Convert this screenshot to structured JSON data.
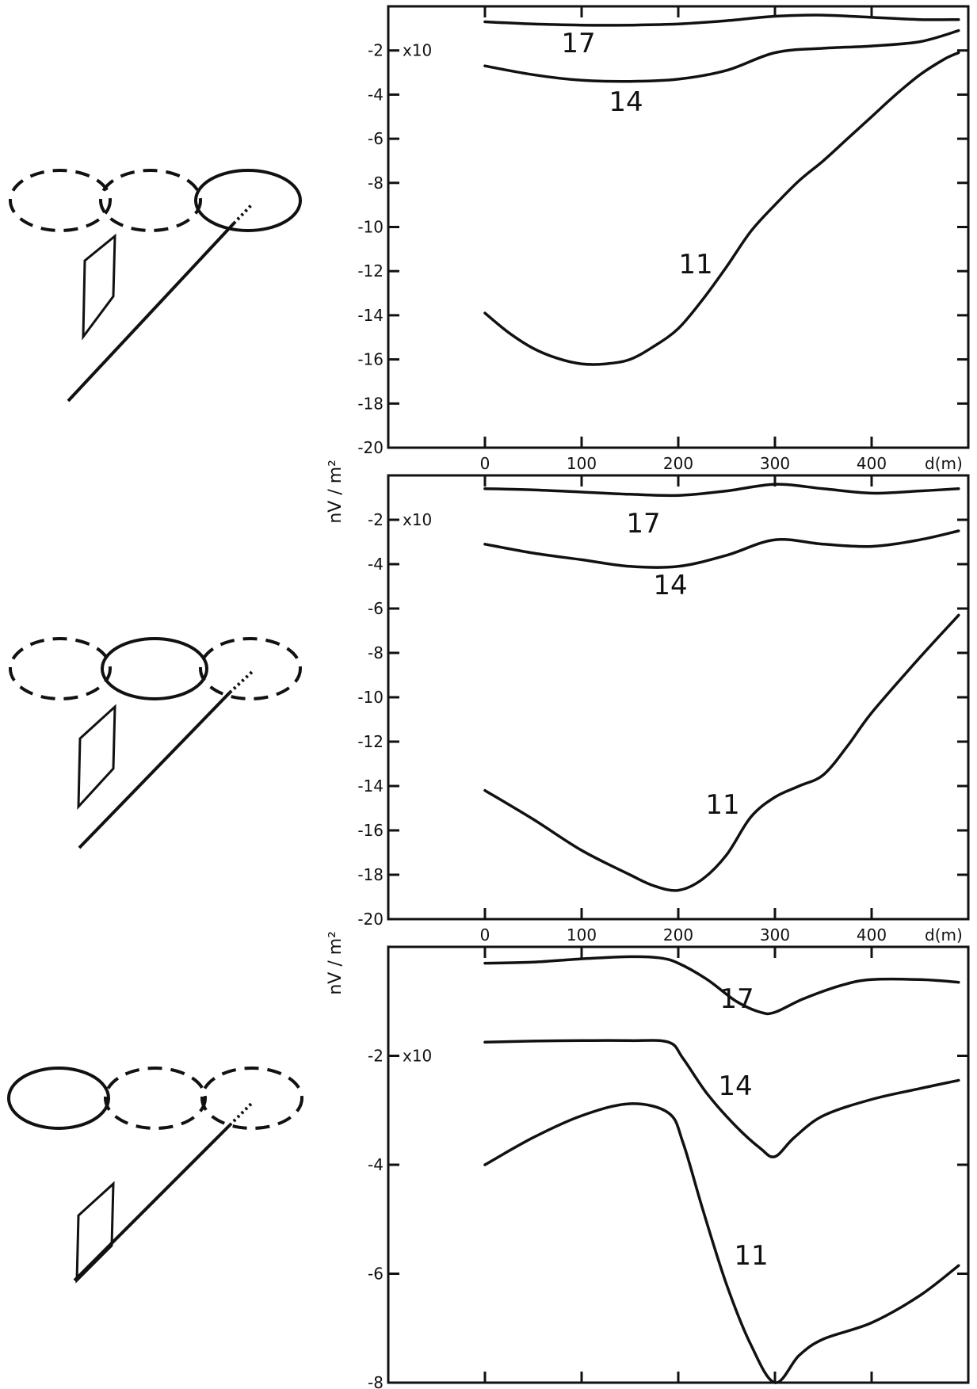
{
  "colors": {
    "ink": "#111111",
    "background": "#ffffff"
  },
  "chart_data": [
    {
      "type": "line",
      "panel": "top",
      "title": "",
      "xlabel": "d(m)",
      "ylabel": "nV / m²",
      "multiplier_label": "x10",
      "xlim": [
        -100,
        500
      ],
      "ylim": [
        -20,
        0
      ],
      "x_ticks": [
        0,
        100,
        200,
        300,
        400
      ],
      "x_tick_labels": [
        "0",
        "100",
        "200",
        "300",
        "400"
      ],
      "y_ticks": [
        -2,
        -4,
        -6,
        -8,
        -10,
        -12,
        -14,
        -16,
        -18,
        -20
      ],
      "y_tick_labels": [
        "-2",
        "-4",
        "-6",
        "-8",
        "-10",
        "-12",
        "-14",
        "-16",
        "-18",
        "-20"
      ],
      "series": [
        {
          "name": "17",
          "x": [
            0,
            50,
            100,
            150,
            200,
            250,
            300,
            350,
            400,
            450,
            490
          ],
          "y": [
            -0.7,
            -0.8,
            -0.85,
            -0.85,
            -0.8,
            -0.65,
            -0.45,
            -0.4,
            -0.5,
            -0.6,
            -0.6
          ]
        },
        {
          "name": "14",
          "x": [
            0,
            50,
            100,
            150,
            200,
            250,
            300,
            350,
            400,
            450,
            490
          ],
          "y": [
            -2.7,
            -3.1,
            -3.35,
            -3.4,
            -3.3,
            -2.9,
            -2.1,
            -1.9,
            -1.8,
            -1.6,
            -1.1
          ]
        },
        {
          "name": "11",
          "x": [
            0,
            25,
            50,
            75,
            100,
            125,
            150,
            175,
            200,
            225,
            250,
            275,
            300,
            325,
            350,
            375,
            400,
            425,
            450,
            475,
            490
          ],
          "y": [
            -13.9,
            -14.8,
            -15.5,
            -15.95,
            -16.2,
            -16.2,
            -16.0,
            -15.4,
            -14.6,
            -13.3,
            -11.8,
            -10.2,
            -9.0,
            -7.9,
            -7.0,
            -6.0,
            -5.0,
            -4.0,
            -3.1,
            -2.4,
            -2.1
          ]
        }
      ],
      "annotations": [
        "17",
        "14",
        "11"
      ]
    },
    {
      "type": "line",
      "panel": "middle",
      "title": "",
      "xlabel": "d(m)",
      "ylabel": "nV / m²",
      "multiplier_label": "x10",
      "xlim": [
        -100,
        500
      ],
      "ylim": [
        -20,
        0
      ],
      "x_ticks": [
        0,
        100,
        200,
        300,
        400
      ],
      "x_tick_labels": [
        "0",
        "100",
        "200",
        "300",
        "400"
      ],
      "y_ticks": [
        -2,
        -4,
        -6,
        -8,
        -10,
        -12,
        -14,
        -16,
        -18,
        -20
      ],
      "y_tick_labels": [
        "-2",
        "-4",
        "-6",
        "-8",
        "-10",
        "-12",
        "-14",
        "-16",
        "-18",
        "-20"
      ],
      "series": [
        {
          "name": "17",
          "x": [
            0,
            50,
            100,
            150,
            200,
            250,
            300,
            350,
            400,
            450,
            490
          ],
          "y": [
            -0.6,
            -0.65,
            -0.75,
            -0.85,
            -0.9,
            -0.7,
            -0.4,
            -0.6,
            -0.8,
            -0.7,
            -0.6
          ]
        },
        {
          "name": "14",
          "x": [
            0,
            50,
            100,
            150,
            200,
            250,
            300,
            350,
            400,
            450,
            490
          ],
          "y": [
            -3.1,
            -3.5,
            -3.8,
            -4.1,
            -4.1,
            -3.6,
            -2.9,
            -3.1,
            -3.2,
            -2.9,
            -2.5
          ]
        },
        {
          "name": "11",
          "x": [
            0,
            50,
            100,
            150,
            175,
            200,
            225,
            250,
            275,
            300,
            325,
            350,
            375,
            400,
            450,
            490
          ],
          "y": [
            -14.2,
            -15.5,
            -16.9,
            -18.0,
            -18.5,
            -18.7,
            -18.2,
            -17.1,
            -15.4,
            -14.5,
            -14.0,
            -13.5,
            -12.2,
            -10.7,
            -8.2,
            -6.3
          ]
        }
      ],
      "annotations": [
        "17",
        "14",
        "11"
      ]
    },
    {
      "type": "line",
      "panel": "bottom",
      "title": "",
      "xlabel": "",
      "ylabel": "nV / m²",
      "multiplier_label": "x10",
      "xlim": [
        -100,
        500
      ],
      "ylim": [
        -8,
        0
      ],
      "x_ticks": [
        0,
        100,
        200,
        300,
        400
      ],
      "x_tick_labels": [],
      "y_ticks": [
        -2,
        -4,
        -6,
        -8
      ],
      "y_tick_labels": [
        "-2",
        "-4",
        "-6",
        "-8"
      ],
      "series": [
        {
          "name": "17",
          "x": [
            0,
            50,
            100,
            150,
            180,
            200,
            230,
            260,
            285,
            300,
            330,
            370,
            400,
            450,
            490
          ],
          "y": [
            -0.3,
            -0.28,
            -0.22,
            -0.18,
            -0.2,
            -0.3,
            -0.6,
            -1.0,
            -1.2,
            -1.2,
            -0.95,
            -0.7,
            -0.6,
            -0.6,
            -0.65
          ]
        },
        {
          "name": "14",
          "x": [
            0,
            50,
            100,
            150,
            190,
            205,
            230,
            260,
            285,
            300,
            320,
            350,
            400,
            450,
            490
          ],
          "y": [
            -1.75,
            -1.73,
            -1.72,
            -1.72,
            -1.75,
            -2.05,
            -2.7,
            -3.3,
            -3.7,
            -3.85,
            -3.5,
            -3.1,
            -2.8,
            -2.6,
            -2.45
          ]
        },
        {
          "name": "11",
          "x": [
            0,
            50,
            100,
            150,
            190,
            205,
            225,
            250,
            275,
            300,
            325,
            350,
            400,
            450,
            490
          ],
          "y": [
            -4.0,
            -3.5,
            -3.1,
            -2.88,
            -3.05,
            -3.6,
            -4.8,
            -6.2,
            -7.3,
            -8.0,
            -7.5,
            -7.2,
            -6.9,
            -6.4,
            -5.85
          ]
        }
      ],
      "annotations": [
        "17",
        "14",
        "11"
      ]
    }
  ]
}
